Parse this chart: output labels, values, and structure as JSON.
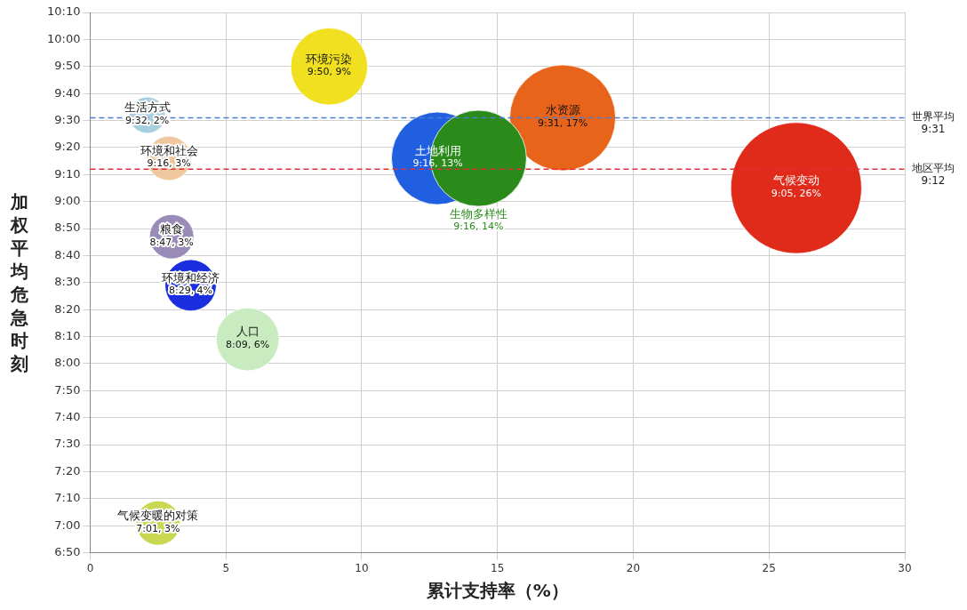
{
  "chart_data": {
    "type": "bubble",
    "xlabel": "累计支持率（%）",
    "ylabel": "加权平均危急时刻",
    "xlim": [
      0,
      30
    ],
    "xticks": [
      0,
      5,
      10,
      15,
      20,
      25,
      30
    ],
    "ylim": [
      6.8333,
      10.1667
    ],
    "yticks": [
      {
        "value": 6.8333,
        "label": "6:50"
      },
      {
        "value": 7,
        "label": "7:00"
      },
      {
        "value": 7.1667,
        "label": "7:10"
      },
      {
        "value": 7.3333,
        "label": "7:20"
      },
      {
        "value": 7.5,
        "label": "7:30"
      },
      {
        "value": 7.6667,
        "label": "7:40"
      },
      {
        "value": 7.8333,
        "label": "7:50"
      },
      {
        "value": 8,
        "label": "8:00"
      },
      {
        "value": 8.1667,
        "label": "8:10"
      },
      {
        "value": 8.3333,
        "label": "8:20"
      },
      {
        "value": 8.5,
        "label": "8:30"
      },
      {
        "value": 8.6667,
        "label": "8:40"
      },
      {
        "value": 8.8333,
        "label": "8:50"
      },
      {
        "value": 9,
        "label": "9:00"
      },
      {
        "value": 9.1667,
        "label": "9:10"
      },
      {
        "value": 9.3333,
        "label": "9:20"
      },
      {
        "value": 9.5,
        "label": "9:30"
      },
      {
        "value": 9.6667,
        "label": "9:40"
      },
      {
        "value": 9.8333,
        "label": "9:50"
      },
      {
        "value": 10,
        "label": "10:00"
      },
      {
        "value": 10.1667,
        "label": "10:10"
      }
    ],
    "grid": true,
    "legend": false,
    "annotations": [
      "9:31",
      "9:12"
    ],
    "series": [
      {
        "name": "生活方式",
        "color": "#a8cfe0",
        "x": [
          2.1
        ],
        "values": [
          9.5333
        ],
        "sizes": [
          0.077
        ],
        "value_labels": [
          "9:32, 2%"
        ]
      },
      {
        "name": "环境和社会",
        "color": "#f0c8a0",
        "x": [
          2.9
        ],
        "values": [
          9.2667
        ],
        "sizes": [
          0.115
        ],
        "value_labels": [
          "9:16, 3%"
        ]
      },
      {
        "name": "粮食",
        "color": "#9a8cb8",
        "x": [
          3.0
        ],
        "values": [
          8.7833
        ],
        "sizes": [
          0.115
        ],
        "value_labels": [
          "8:47, 3%"
        ]
      },
      {
        "name": "环境和经济",
        "color": "#1a2ee0",
        "x": [
          3.7
        ],
        "values": [
          8.4833
        ],
        "sizes": [
          0.154
        ],
        "value_labels": [
          "8:29, 4%"
        ]
      },
      {
        "name": "人口",
        "color": "#c8ecc0",
        "x": [
          5.8
        ],
        "values": [
          8.15
        ],
        "sizes": [
          0.231
        ],
        "value_labels": [
          "8:09, 6%"
        ]
      },
      {
        "name": "气候变暖的对策",
        "color": "#c8d850",
        "x": [
          2.5
        ],
        "values": [
          7.0167
        ],
        "sizes": [
          0.115
        ],
        "value_labels": [
          "7:01, 3%"
        ]
      },
      {
        "name": "环境污染",
        "color": "#f0e020",
        "x": [
          8.8
        ],
        "values": [
          9.8333
        ],
        "sizes": [
          0.346
        ],
        "value_labels": [
          "9:50, 9%"
        ]
      },
      {
        "name": "生物多样性",
        "color": "#2a8a1a",
        "x": [
          14.3
        ],
        "values": [
          9.2667
        ],
        "sizes": [
          0.538
        ],
        "value_labels": [
          "9:16, 14%"
        ]
      },
      {
        "name": "土地利用",
        "color": "#2060e0",
        "x": [
          12.8
        ],
        "values": [
          9.2667
        ],
        "sizes": [
          0.5
        ],
        "value_labels": [
          "9:16, 13%"
        ]
      },
      {
        "name": "水资源",
        "color": "#e8641a",
        "x": [
          17.4
        ],
        "values": [
          9.5167
        ],
        "sizes": [
          0.654
        ],
        "value_labels": [
          "9:31, 17%"
        ]
      },
      {
        "name": "气候变动",
        "color": "#e02a1a",
        "x": [
          26
        ],
        "values": [
          9.0833
        ],
        "sizes": [
          1
        ],
        "value_labels": [
          "9:05, 26%"
        ]
      }
    ],
    "ref_lines": [
      {
        "axis": "y",
        "value": 9.5167,
        "label": "世界平均",
        "color": "#4a7fd0",
        "line_style": "dashed"
      },
      {
        "axis": "y",
        "value": 9.2,
        "label": "地区平均",
        "color": "#e0303a",
        "line_style": "dashed"
      }
    ]
  }
}
